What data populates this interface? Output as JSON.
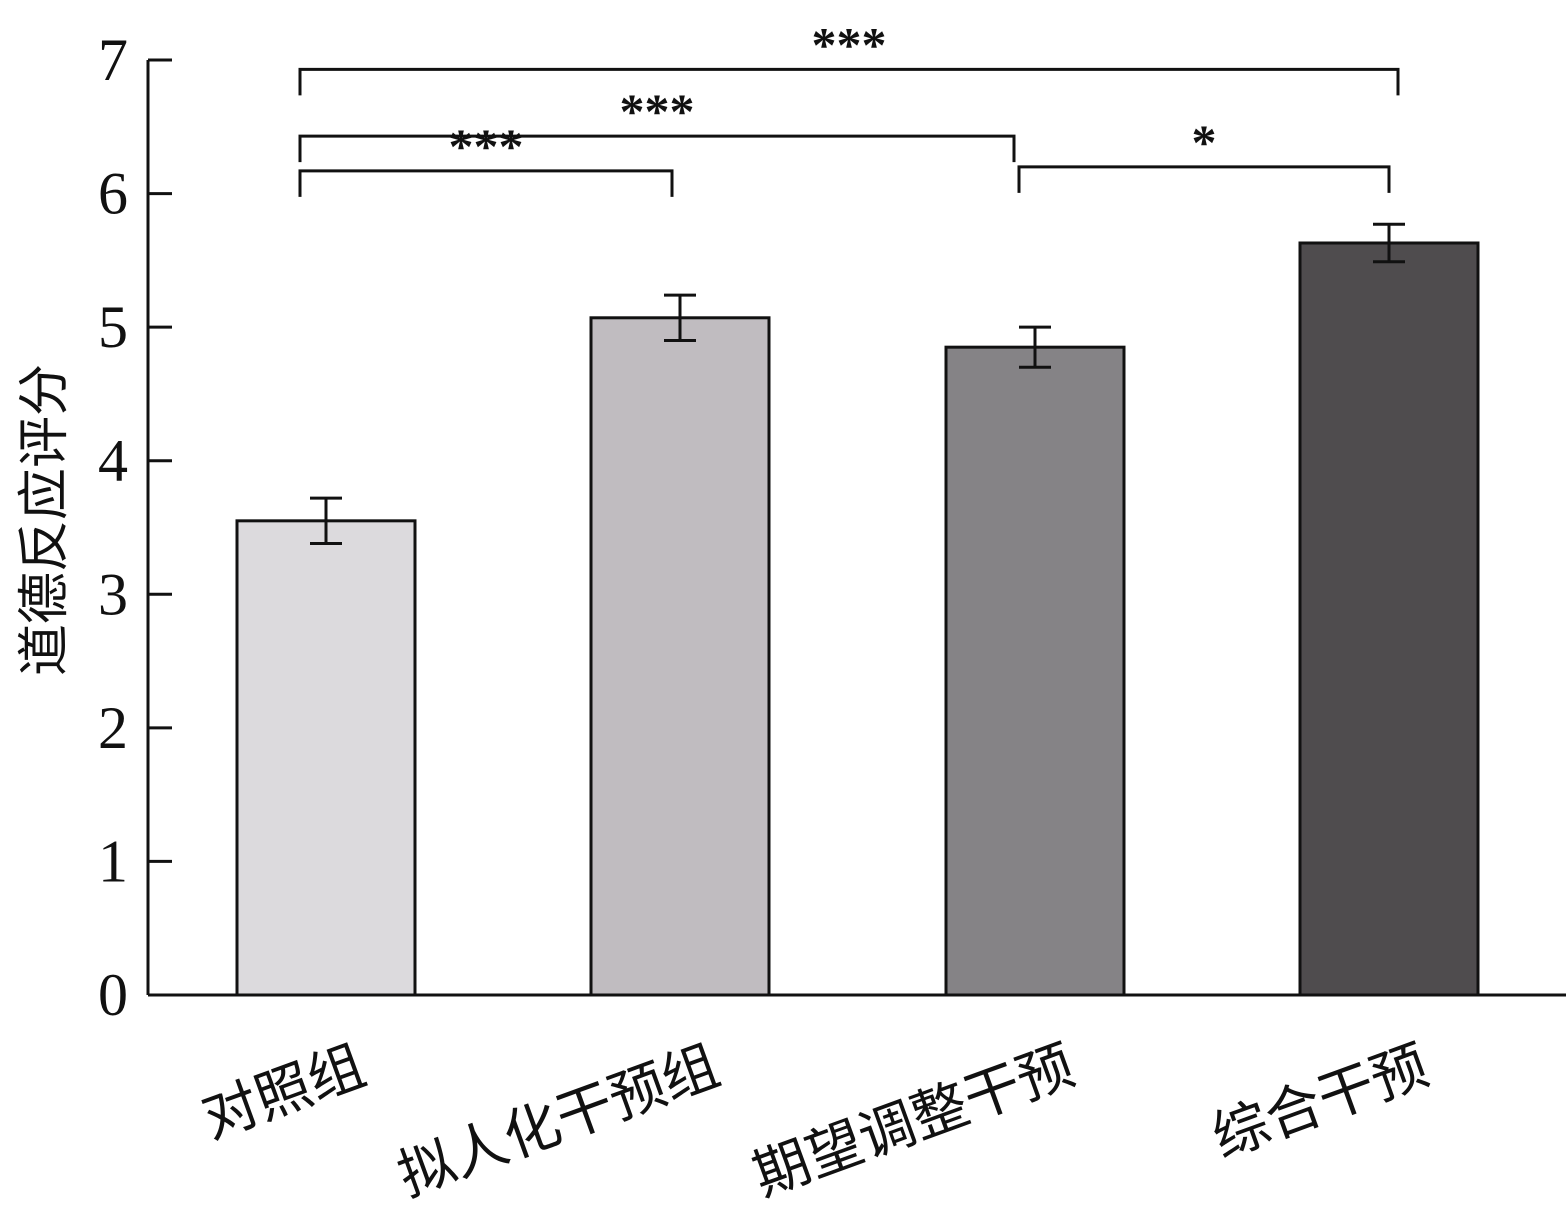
{
  "chart_data": {
    "type": "bar",
    "title": "",
    "xlabel": "",
    "ylabel": "道德反应评分",
    "ylim": [
      0,
      7
    ],
    "yticks": [
      0,
      1,
      2,
      3,
      4,
      5,
      6,
      7
    ],
    "grid": false,
    "categories": [
      "对照组",
      "拟人化干预组",
      "期望调整干预",
      "综合干预"
    ],
    "values": [
      3.55,
      5.07,
      4.85,
      5.63
    ],
    "error_bars": [
      0.17,
      0.17,
      0.15,
      0.14
    ],
    "colors": [
      "#dcdadd",
      "#c0bcc0",
      "#858386",
      "#4f4c4e"
    ],
    "edge_color": "#111111",
    "significance": [
      {
        "from": 0,
        "to": 3,
        "label": "***",
        "y": 6.93
      },
      {
        "from": 0,
        "to": 2,
        "label": "***",
        "y": 6.43
      },
      {
        "from": 0,
        "to": 1,
        "label": "***",
        "y": 6.17
      },
      {
        "from": 2,
        "to": 3,
        "label": "*",
        "y": 6.2
      }
    ]
  }
}
